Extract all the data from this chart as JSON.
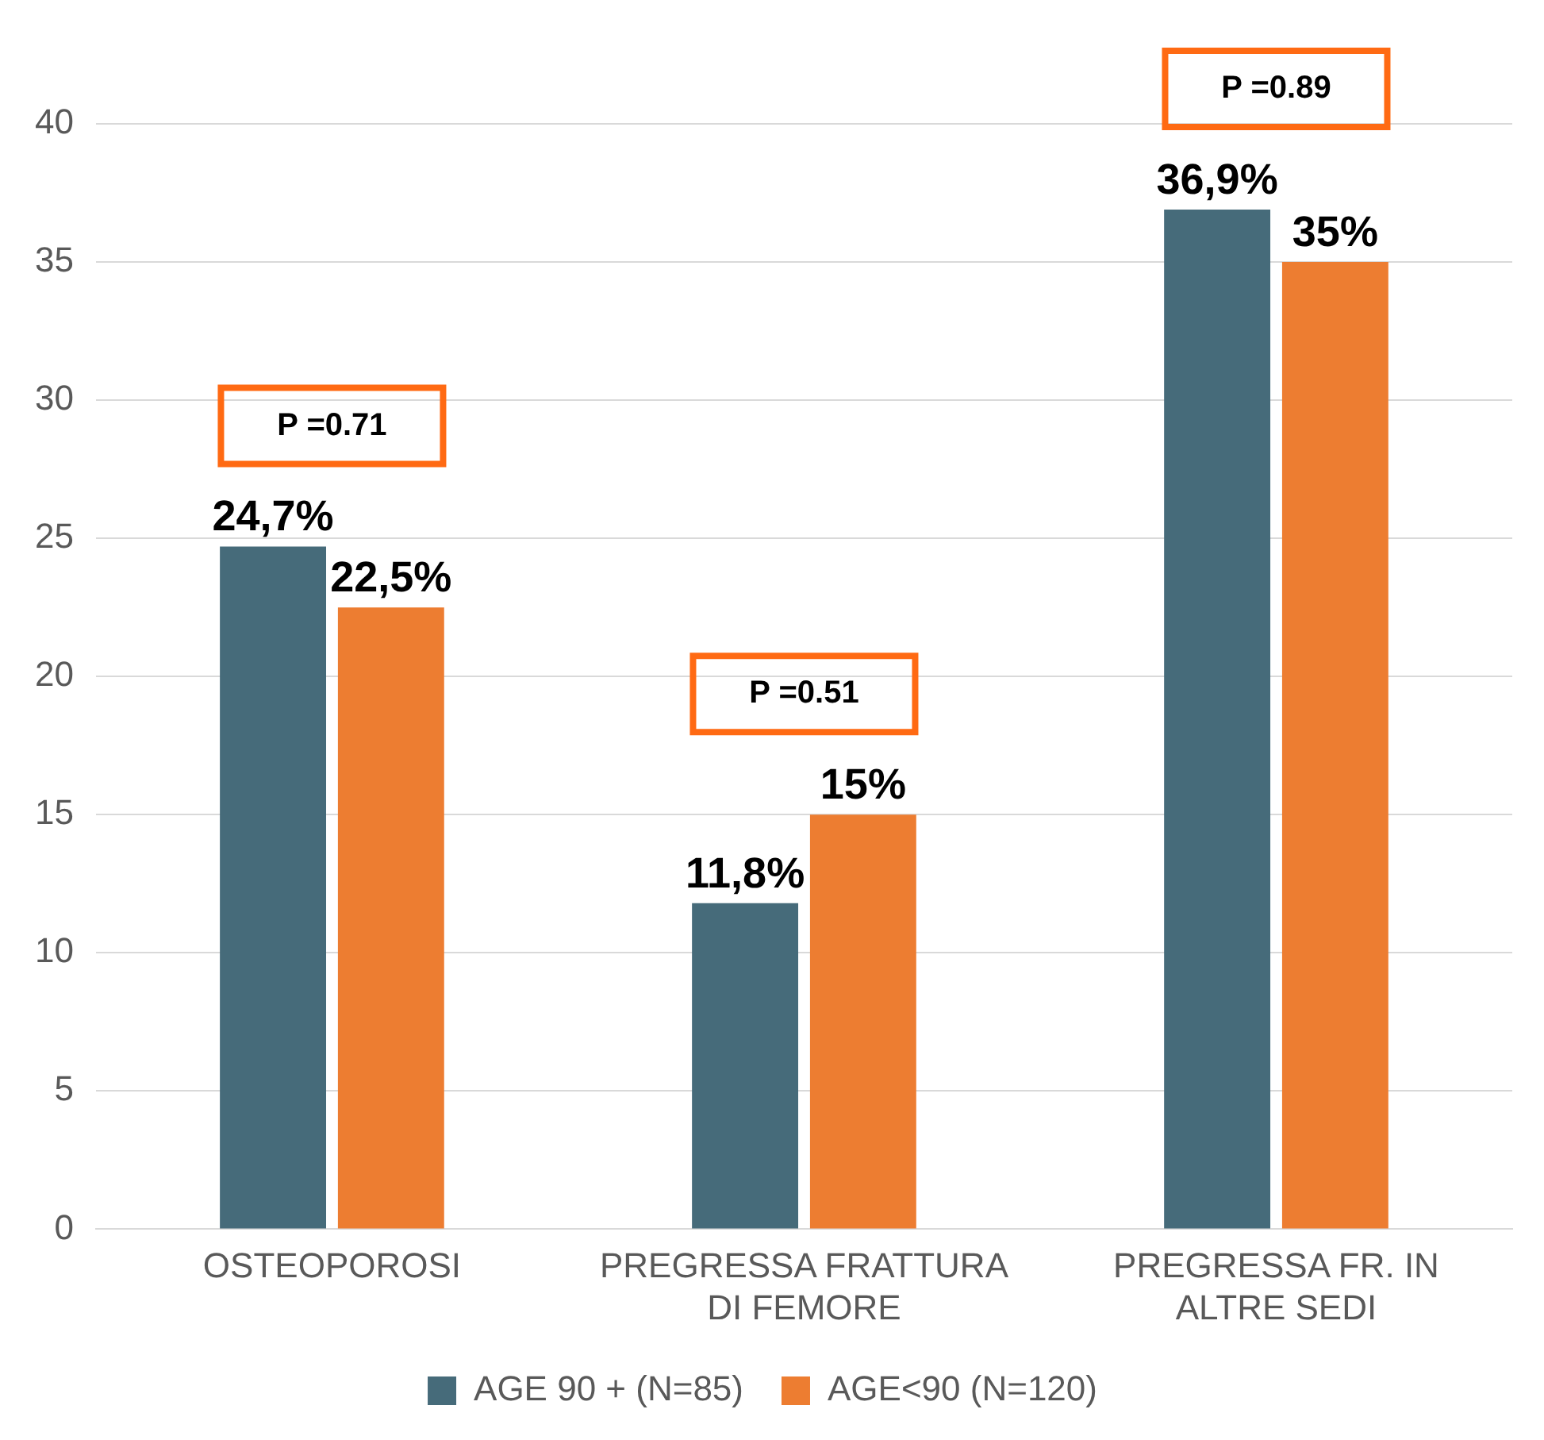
{
  "chart_data": {
    "type": "bar",
    "categories": [
      "OSTEOPOROSI",
      "PREGRESSA FRATTURA DI FEMORE",
      "PREGRESSA FR. IN ALTRE SEDI"
    ],
    "series": [
      {
        "name": "AGE 90 + (N=85)",
        "color": "#466b7a",
        "values": [
          24.7,
          11.8,
          36.9
        ],
        "value_labels": [
          "24,7%",
          "11,8%",
          "36,9%"
        ]
      },
      {
        "name": "AGE<90 (N=120)",
        "color": "#ed7d31",
        "values": [
          22.5,
          15,
          35
        ],
        "value_labels": [
          "22,5%",
          "15%",
          "35%"
        ]
      }
    ],
    "annotations": [
      "P =0.71",
      "P =0.51",
      "P =0.89"
    ],
    "ylim": [
      0,
      40
    ],
    "yticks": [
      0,
      5,
      10,
      15,
      20,
      25,
      30,
      35,
      40
    ],
    "grid": "y",
    "legend": "bottom"
  }
}
